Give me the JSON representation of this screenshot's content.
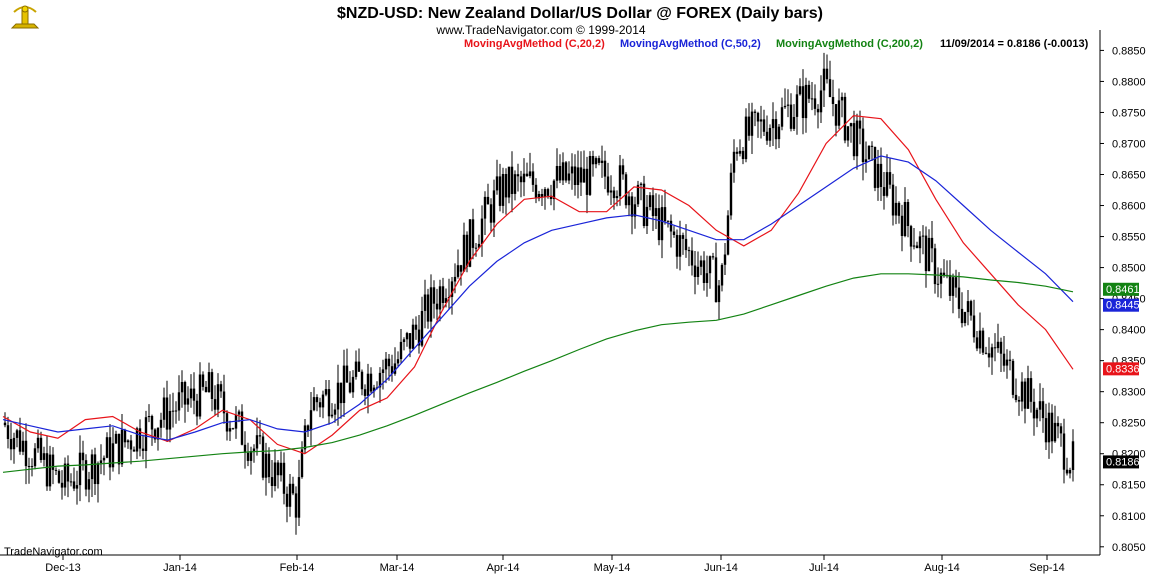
{
  "header": {
    "title": "$NZD-USD:  New Zealand Dollar/US Dollar @ FOREX  (Daily bars)",
    "subtitle": "www.TradeNavigator.com © 1999-2014",
    "readout": "11/09/2014 = 0.8186 (-0.0013)",
    "watermark": "TradeNavigator.com"
  },
  "colors": {
    "ma20": "#e8141a",
    "ma50": "#1a24d8",
    "ma200": "#138313",
    "bars": "#000000",
    "last_tag": "#000000"
  },
  "chart_data": {
    "type": "line",
    "x_ticks": [
      "Dec-13",
      "Jan-14",
      "Feb-14",
      "Mar-14",
      "Apr-14",
      "May-14",
      "Jun-14",
      "Jul-14",
      "Aug-14",
      "Sep-14"
    ],
    "y_ticks": [
      "0.8850",
      "0.8800",
      "0.8750",
      "0.8700",
      "0.8650",
      "0.8600",
      "0.8550",
      "0.8500",
      "0.8450",
      "0.8400",
      "0.8350",
      "0.8300",
      "0.8250",
      "0.8200",
      "0.8150",
      "0.8100",
      "0.8050"
    ],
    "ylim": [
      0.804,
      0.887
    ],
    "price_monthly_path": [
      [
        "Nov-30",
        0.825
      ],
      [
        "Dec-13",
        0.815
      ],
      [
        "Jan-14",
        0.828
      ],
      [
        "Jan-20",
        0.83
      ],
      [
        "Feb-14",
        0.812
      ],
      [
        "Feb-20",
        0.828
      ],
      [
        "Mar-14",
        0.835
      ],
      [
        "Apr-14",
        0.863
      ],
      [
        "May-14",
        0.865
      ],
      [
        "Jun-14",
        0.847
      ],
      [
        "Jun-20",
        0.87
      ],
      [
        "Jul-14",
        0.879
      ],
      [
        "Aug-14",
        0.848
      ],
      [
        "Sep-14",
        0.825
      ],
      [
        "Sep-09",
        0.8186
      ]
    ],
    "series": [
      {
        "name": "MovingAvgMethod (C,20,2)",
        "values": [
          0.826,
          0.8235,
          0.8225,
          0.8255,
          0.826,
          0.8235,
          0.822,
          0.824,
          0.827,
          0.8255,
          0.8215,
          0.82,
          0.823,
          0.827,
          0.829,
          0.834,
          0.843,
          0.851,
          0.857,
          0.861,
          0.8615,
          0.859,
          0.859,
          0.863,
          0.8625,
          0.86,
          0.856,
          0.8535,
          0.856,
          0.862,
          0.87,
          0.8745,
          0.874,
          0.869,
          0.861,
          0.854,
          0.849,
          0.844,
          0.84,
          0.8336
        ]
      },
      {
        "name": "MovingAvgMethod (C,50,2)",
        "values": [
          0.8255,
          0.8245,
          0.8235,
          0.824,
          0.8245,
          0.823,
          0.8222,
          0.8235,
          0.825,
          0.8255,
          0.824,
          0.8235,
          0.825,
          0.828,
          0.832,
          0.837,
          0.842,
          0.847,
          0.851,
          0.854,
          0.856,
          0.857,
          0.858,
          0.8585,
          0.8575,
          0.856,
          0.8545,
          0.8545,
          0.857,
          0.86,
          0.863,
          0.866,
          0.868,
          0.867,
          0.864,
          0.86,
          0.856,
          0.8525,
          0.849,
          0.8445
        ]
      },
      {
        "name": "MovingAvgMethod (C,200,2)",
        "values": [
          0.817,
          0.8175,
          0.818,
          0.8182,
          0.8185,
          0.8188,
          0.8192,
          0.8196,
          0.82,
          0.8203,
          0.8205,
          0.821,
          0.8218,
          0.823,
          0.8245,
          0.8262,
          0.828,
          0.8298,
          0.8315,
          0.8333,
          0.835,
          0.8368,
          0.8385,
          0.8398,
          0.8408,
          0.8412,
          0.8415,
          0.8425,
          0.844,
          0.8455,
          0.847,
          0.8483,
          0.849,
          0.849,
          0.8488,
          0.8485,
          0.848,
          0.8476,
          0.847,
          0.8461
        ]
      }
    ],
    "last_values": {
      "ma20": "0.8336",
      "ma50": "0.8445",
      "ma200": "0.8461",
      "price": "0.8186"
    },
    "grid": false
  }
}
